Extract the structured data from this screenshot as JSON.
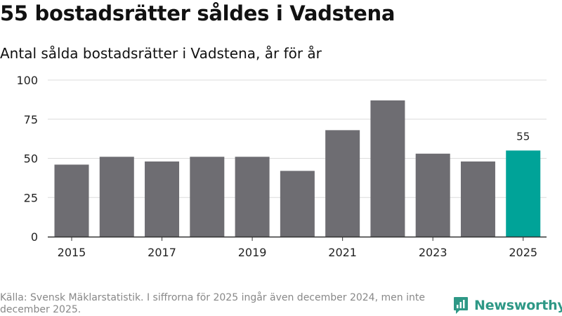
{
  "header": {
    "title": "55 bostadsrätter såldes i Vadstena",
    "subtitle": "Antal sålda bostadsrätter i Vadstena, år för år"
  },
  "footer": {
    "source": "Källa: Svensk Mäklarstatistik. I siffrorna för 2025 ingår även december 2024, men inte december 2025.",
    "brand": "Newsworthy"
  },
  "colors": {
    "bar": "#6e6d72",
    "highlight": "#00a398",
    "grid": "#dcdcdc",
    "axis": "#333333",
    "brand": "#2e9886"
  },
  "chart_data": {
    "type": "bar",
    "categories": [
      "2015",
      "2016",
      "2017",
      "2018",
      "2019",
      "2020",
      "2021",
      "2022",
      "2023",
      "2024",
      "2025"
    ],
    "values": [
      46,
      51,
      48,
      51,
      51,
      42,
      68,
      87,
      53,
      48,
      55
    ],
    "highlight_index": 10,
    "data_labels": [
      {
        "index": 10,
        "text": "55"
      }
    ],
    "x_tick_labels": [
      "2015",
      "2017",
      "2019",
      "2021",
      "2023",
      "2025"
    ],
    "y_ticks": [
      0,
      25,
      50,
      75,
      100
    ],
    "ylim": [
      0,
      100
    ],
    "grid": true,
    "title": "Antal sålda bostadsrätter i Vadstena, år för år",
    "xlabel": "",
    "ylabel": ""
  }
}
